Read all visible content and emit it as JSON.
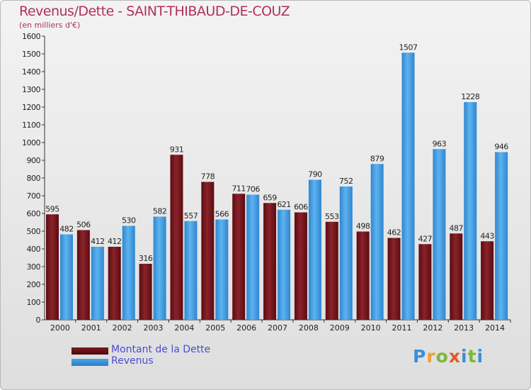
{
  "chart_data": {
    "type": "bar",
    "title": "Revenus/Dette - SAINT-THIBAUD-DE-COUZ",
    "subtitle": "(en milliers d'€)",
    "categories": [
      "2000",
      "2001",
      "2002",
      "2003",
      "2004",
      "2005",
      "2006",
      "2007",
      "2008",
      "2009",
      "2010",
      "2011",
      "2012",
      "2013",
      "2014"
    ],
    "series": [
      {
        "name": "Montant de la Dette",
        "color": "#7a1a1f",
        "values": [
          595,
          506,
          412,
          316,
          931,
          778,
          711,
          659,
          606,
          553,
          498,
          462,
          427,
          487,
          443
        ]
      },
      {
        "name": "Revenus",
        "color": "#4aa3e6",
        "values": [
          482,
          412,
          530,
          582,
          557,
          566,
          706,
          621,
          790,
          752,
          879,
          1507,
          963,
          1228,
          946
        ]
      }
    ],
    "ylim": [
      0,
      1600
    ],
    "ytick_step": 100,
    "grid": false,
    "legend_position": "bottom-left"
  },
  "logo": {
    "text": "Proxiti",
    "letters": [
      {
        "ch": "P",
        "color": "#3a8fd8"
      },
      {
        "ch": "r",
        "color": "#f0a030"
      },
      {
        "ch": "o",
        "color": "#7ab83a"
      },
      {
        "ch": "x",
        "color": "#e05a2a"
      },
      {
        "ch": "i",
        "color": "#3a8fd8"
      },
      {
        "ch": "t",
        "color": "#7ab83a"
      },
      {
        "ch": "i",
        "color": "#3a8fd8"
      }
    ]
  }
}
